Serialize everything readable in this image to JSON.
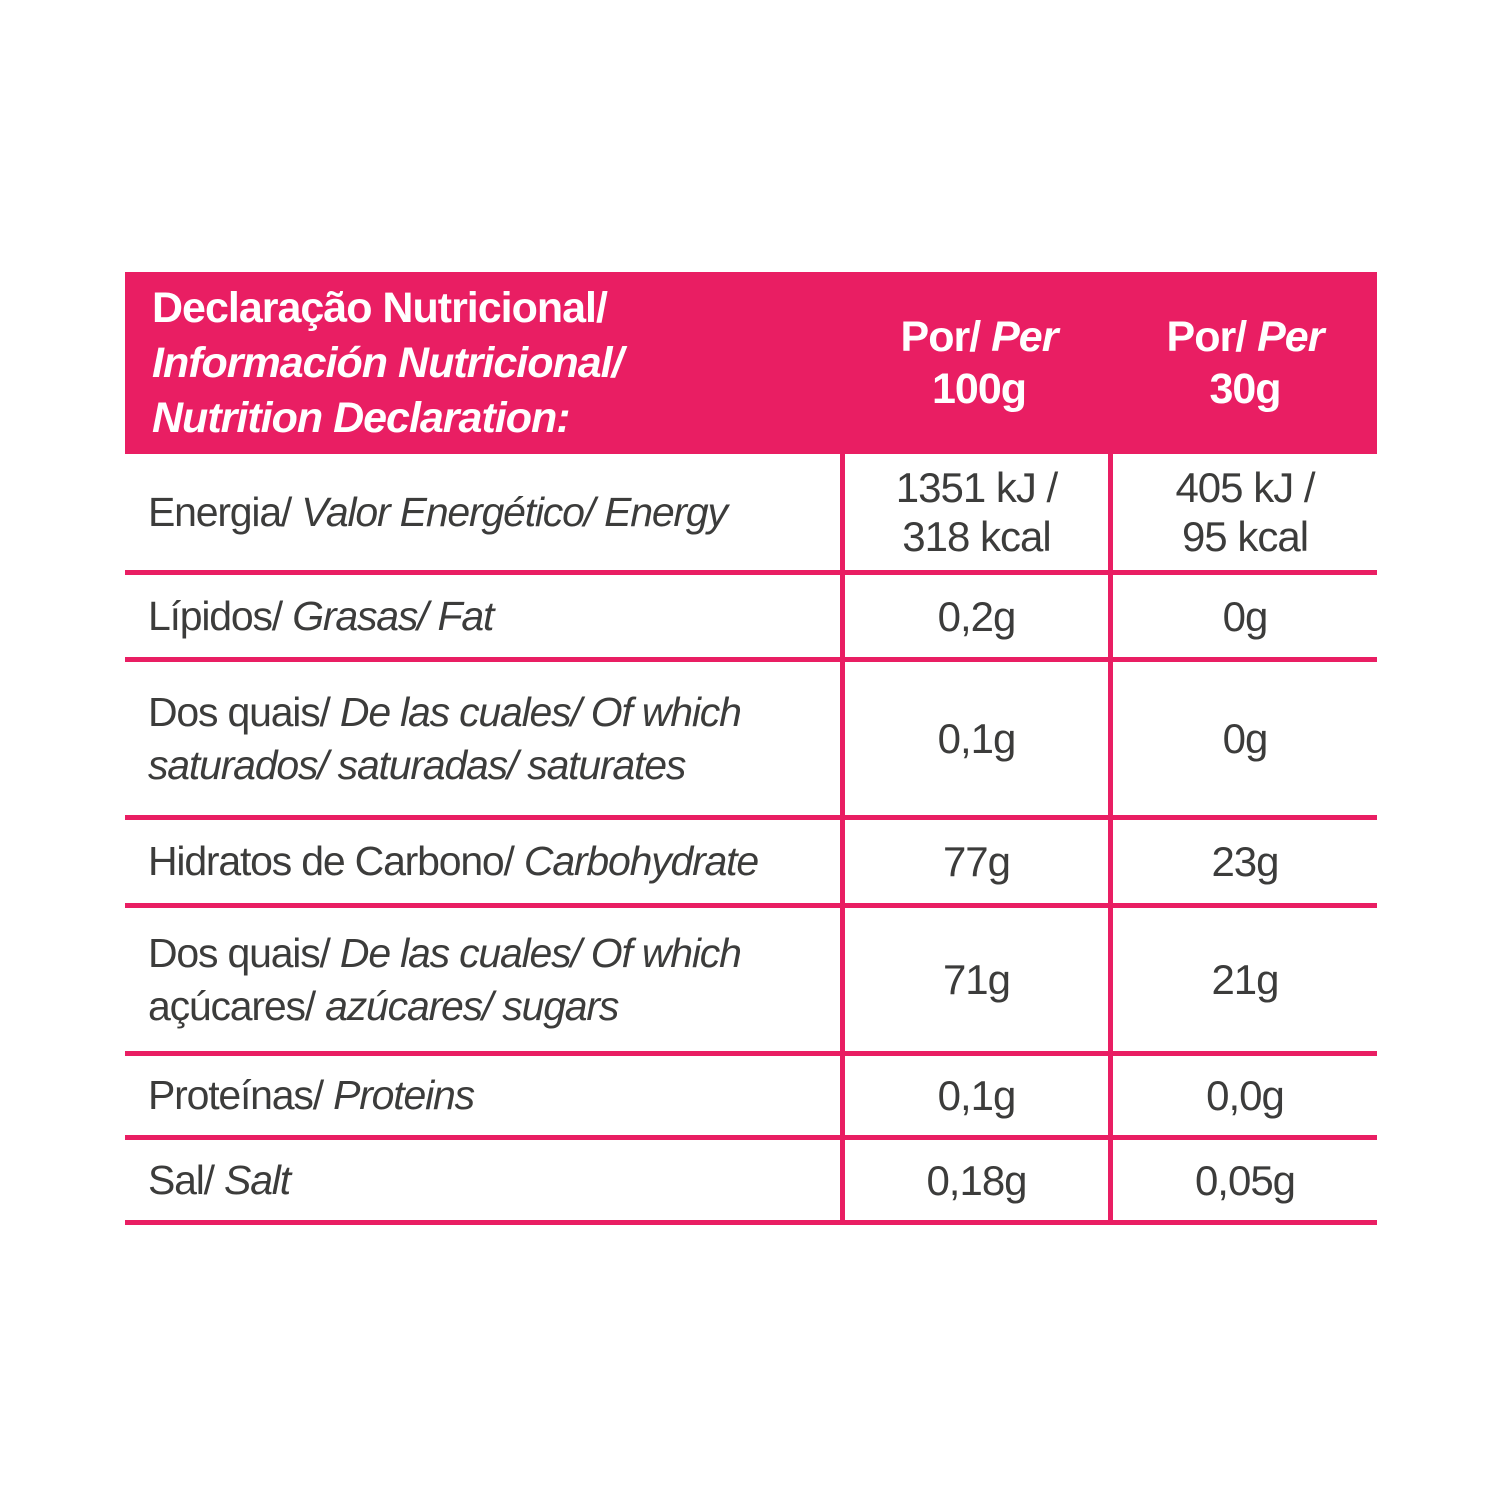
{
  "colors": {
    "pink": "#E91E63",
    "text": "#3C3C3B",
    "header_text": "#FFFFFF"
  },
  "table": {
    "header": {
      "title_lines": [
        {
          "t": "Declaração Nutricional/",
          "i": false
        },
        {
          "t": "Información Nutricional/",
          "i": true
        },
        {
          "t": "Nutrition Declaration:",
          "i": true
        }
      ],
      "per100": {
        "por": "Por/",
        "per": "Per",
        "amount": "100g"
      },
      "per30": {
        "por": "Por/",
        "per": "Per",
        "amount": "30g"
      }
    },
    "rows": [
      {
        "label_lines": [
          [
            {
              "t": "Energia/",
              "i": false
            },
            {
              "t": " Valor Energético/ Energy",
              "i": true
            }
          ]
        ],
        "per100": "1351 kJ /\n318 kcal",
        "per30": "405 kJ /\n95 kcal"
      },
      {
        "label_lines": [
          [
            {
              "t": "Lípidos/",
              "i": false
            },
            {
              "t": " Grasas/ Fat",
              "i": true
            }
          ]
        ],
        "per100": "0,2g",
        "per30": "0g"
      },
      {
        "label_lines": [
          [
            {
              "t": "Dos quais/",
              "i": false
            },
            {
              "t": " De las cuales/ Of which",
              "i": true
            }
          ],
          [
            {
              "t": "saturados/ saturadas/ saturates",
              "i": true
            }
          ]
        ],
        "per100": "0,1g",
        "per30": "0g"
      },
      {
        "label_lines": [
          [
            {
              "t": "Hidratos de Carbono/",
              "i": false
            },
            {
              "t": " Carbohydrate",
              "i": true
            }
          ]
        ],
        "per100": "77g",
        "per30": "23g"
      },
      {
        "label_lines": [
          [
            {
              "t": "Dos quais/",
              "i": false
            },
            {
              "t": " De las cuales/ Of which",
              "i": true
            }
          ],
          [
            {
              "t": "açúcares/",
              "i": false
            },
            {
              "t": " azúcares/ sugars",
              "i": true
            }
          ]
        ],
        "per100": "71g",
        "per30": "21g"
      },
      {
        "label_lines": [
          [
            {
              "t": "Proteínas/",
              "i": false
            },
            {
              "t": " Proteins",
              "i": true
            }
          ]
        ],
        "per100": "0,1g",
        "per30": "0,0g"
      },
      {
        "label_lines": [
          [
            {
              "t": "Sal/",
              "i": false
            },
            {
              "t": " Salt",
              "i": true
            }
          ]
        ],
        "per100": "0,18g",
        "per30": "0,05g"
      }
    ]
  }
}
